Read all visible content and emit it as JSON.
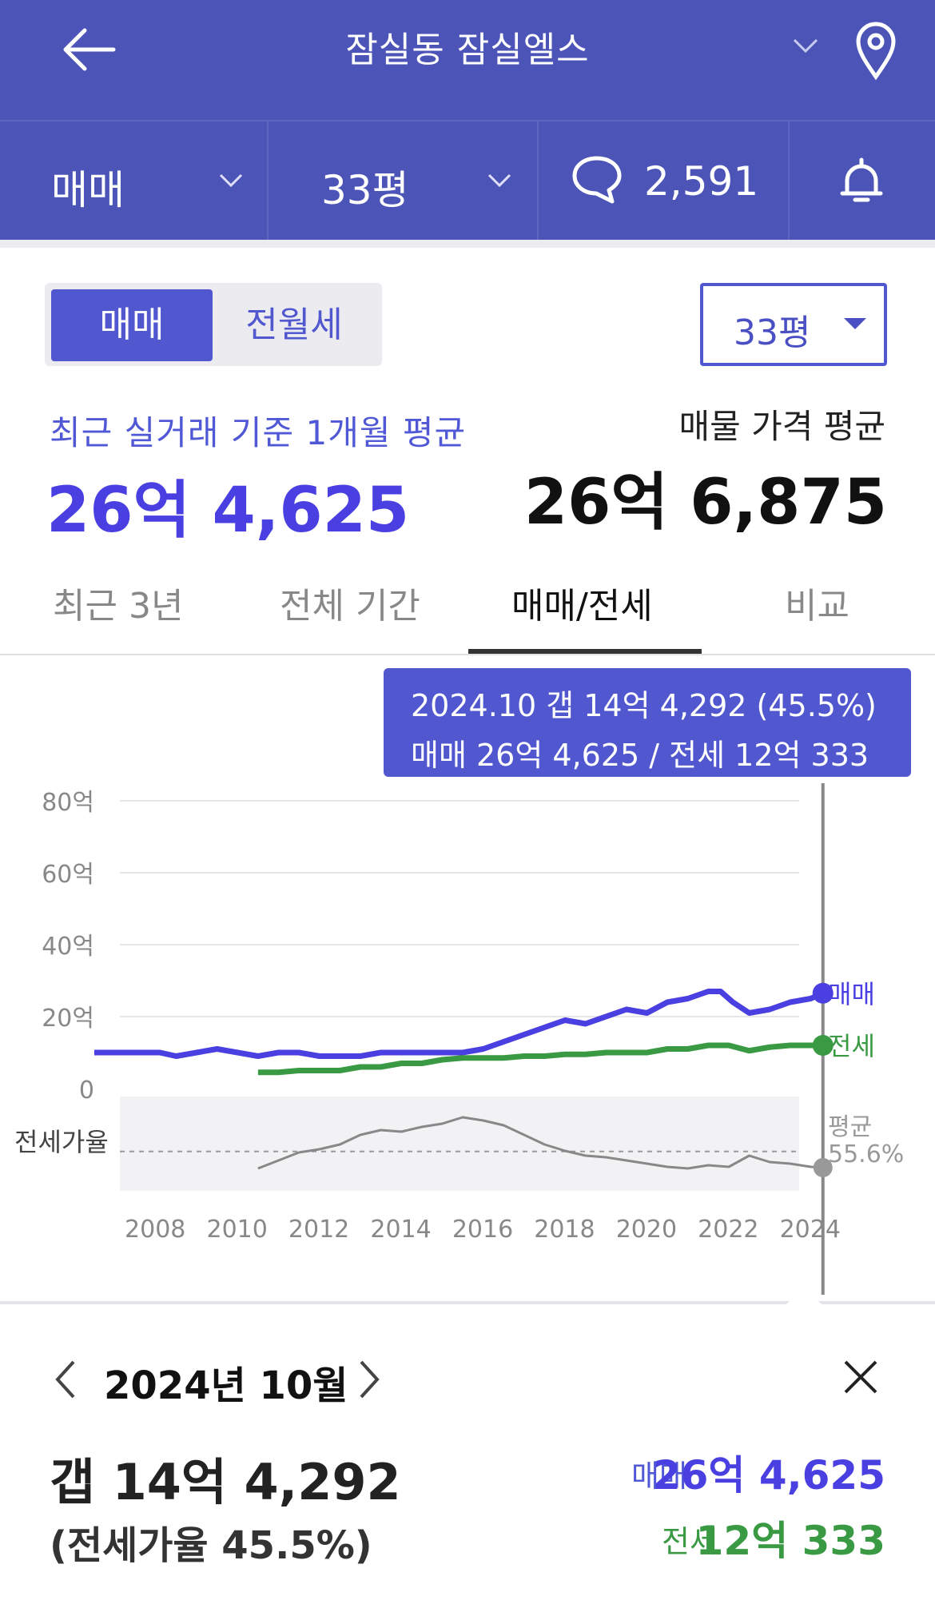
{
  "header": {
    "title": "잠실동 잠실엘스"
  },
  "subbar": {
    "deal_type": "매매",
    "size": "33평",
    "comments": "2,591"
  },
  "toggle": {
    "options": [
      "매매",
      "전월세"
    ],
    "selected": "매매"
  },
  "size_select": {
    "value": "33평"
  },
  "summary": {
    "recent_label": "최근 실거래 기준 1개월 평균",
    "recent_value": "26억 4,625",
    "listing_label": "매물 가격 평균",
    "listing_value": "26억 6,875"
  },
  "tabs": [
    "최근 3년",
    "전체 기간",
    "매매/전세",
    "비교"
  ],
  "active_tab": "매매/전세",
  "tooltip": {
    "line1": "2024.10  갭 14억 4,292 (45.5%)",
    "line2": "매매 26억 4,625 / 전세 12억 333"
  },
  "colors": {
    "sale": "#4a3fe0",
    "jeonse": "#3a9a44",
    "ratio": "#888888",
    "brand": "#4c55b7"
  },
  "chart_data": {
    "type": "line",
    "x_ticks": [
      "2008",
      "2010",
      "2012",
      "2014",
      "2016",
      "2018",
      "2020",
      "2022",
      "2024"
    ],
    "y_ticks": [
      "80억",
      "60억",
      "40억",
      "20억",
      "0"
    ],
    "ylim": [
      0,
      80
    ],
    "ratio_label": "전세가율",
    "avg_label": "평균",
    "avg_value": "55.6%",
    "series": [
      {
        "name": "매매",
        "x": [
          2007.0,
          2008.0,
          2008.6,
          2009.0,
          2009.5,
          2010.0,
          2010.5,
          2011.0,
          2011.5,
          2012.0,
          2012.5,
          2013.0,
          2013.5,
          2014.0,
          2014.5,
          2015.0,
          2015.5,
          2016.0,
          2016.5,
          2017.0,
          2017.5,
          2018.0,
          2018.5,
          2019.0,
          2019.5,
          2020.0,
          2020.5,
          2021.0,
          2021.5,
          2022.0,
          2022.3,
          2022.6,
          2023.0,
          2023.5,
          2024.0,
          2024.5,
          2024.8
        ],
        "y": [
          10,
          10,
          10,
          9,
          10,
          11,
          10,
          9,
          10,
          10,
          9,
          9,
          9,
          10,
          10,
          10,
          10,
          10,
          11,
          13,
          15,
          17,
          19,
          18,
          20,
          22,
          21,
          24,
          25,
          27,
          27,
          24,
          21,
          22,
          24,
          25,
          26.5
        ]
      },
      {
        "name": "전세",
        "x": [
          2011.0,
          2011.5,
          2012.0,
          2012.5,
          2013.0,
          2013.5,
          2014.0,
          2014.5,
          2015.0,
          2015.5,
          2016.0,
          2016.5,
          2017.0,
          2017.5,
          2018.0,
          2018.5,
          2019.0,
          2019.5,
          2020.0,
          2020.5,
          2021.0,
          2021.5,
          2022.0,
          2022.5,
          2023.0,
          2023.5,
          2024.0,
          2024.5,
          2024.8
        ],
        "y": [
          4.5,
          4.5,
          5,
          5,
          5,
          6,
          6,
          7,
          7,
          8,
          8.5,
          8.5,
          8.5,
          9,
          9,
          9.5,
          9.5,
          10,
          10,
          10,
          11,
          11,
          12,
          12,
          10.5,
          11.5,
          12,
          12,
          12
        ]
      }
    ],
    "ratio_series": {
      "x": [
        2011.0,
        2011.5,
        2012.0,
        2012.5,
        2013.0,
        2013.5,
        2014.0,
        2014.5,
        2015.0,
        2015.5,
        2016.0,
        2016.5,
        2017.0,
        2017.5,
        2018.0,
        2018.5,
        2019.0,
        2019.5,
        2020.0,
        2020.5,
        2021.0,
        2021.5,
        2022.0,
        2022.5,
        2023.0,
        2023.5,
        2024.0,
        2024.5,
        2024.8
      ],
      "y": [
        45,
        50,
        55,
        57,
        60,
        66,
        69,
        68,
        71,
        73,
        77,
        75,
        72,
        66,
        60,
        56,
        53,
        52,
        50,
        48,
        46,
        45,
        47,
        46,
        53,
        49,
        48,
        46,
        45.5
      ]
    },
    "highlight": {
      "x": 2024.8,
      "sale": 26.5,
      "jeonse": 12
    }
  },
  "detail": {
    "month": "2024년 10월",
    "gap": "갭 14억 4,292",
    "ratio": "(전세가율 45.5%)",
    "sale_label": "매매",
    "sale_value": "26억 4,625",
    "jeonse_label": "전세",
    "jeonse_value": "12억 333"
  }
}
